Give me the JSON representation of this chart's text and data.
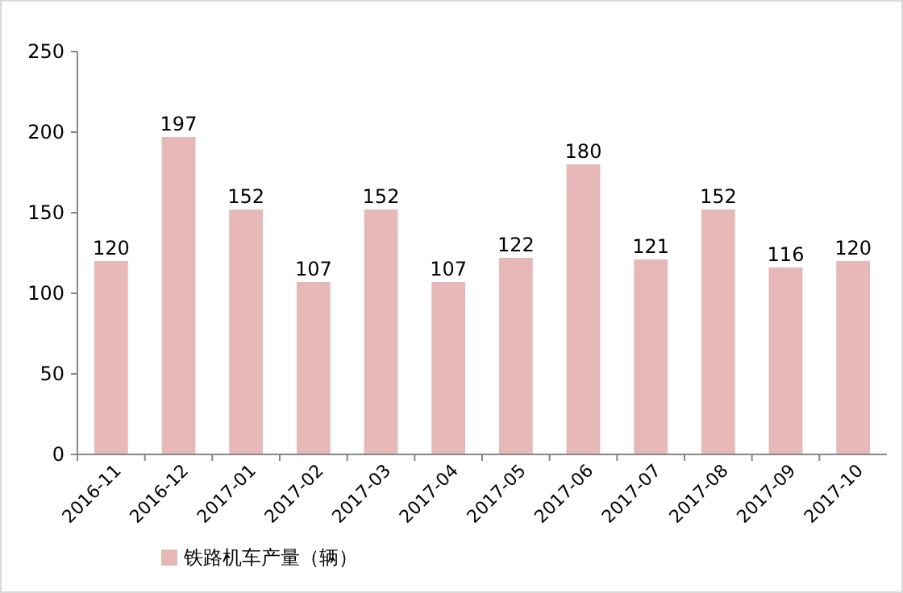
{
  "chart_data": {
    "type": "bar",
    "categories": [
      "2016-11",
      "2016-12",
      "2017-01",
      "2017-02",
      "2017-03",
      "2017-04",
      "2017-05",
      "2017-06",
      "2017-07",
      "2017-08",
      "2017-09",
      "2017-10"
    ],
    "series": [
      {
        "name": "铁路机车产量（辆）",
        "color": "#e6b9b8",
        "values": [
          120,
          197,
          152,
          107,
          152,
          107,
          122,
          180,
          121,
          152,
          116,
          120
        ]
      }
    ],
    "ylim": [
      0,
      250
    ],
    "yticks": [
      0,
      50,
      100,
      150,
      200,
      250
    ],
    "data_labels": true,
    "legend": "bottom left",
    "grid": false
  }
}
